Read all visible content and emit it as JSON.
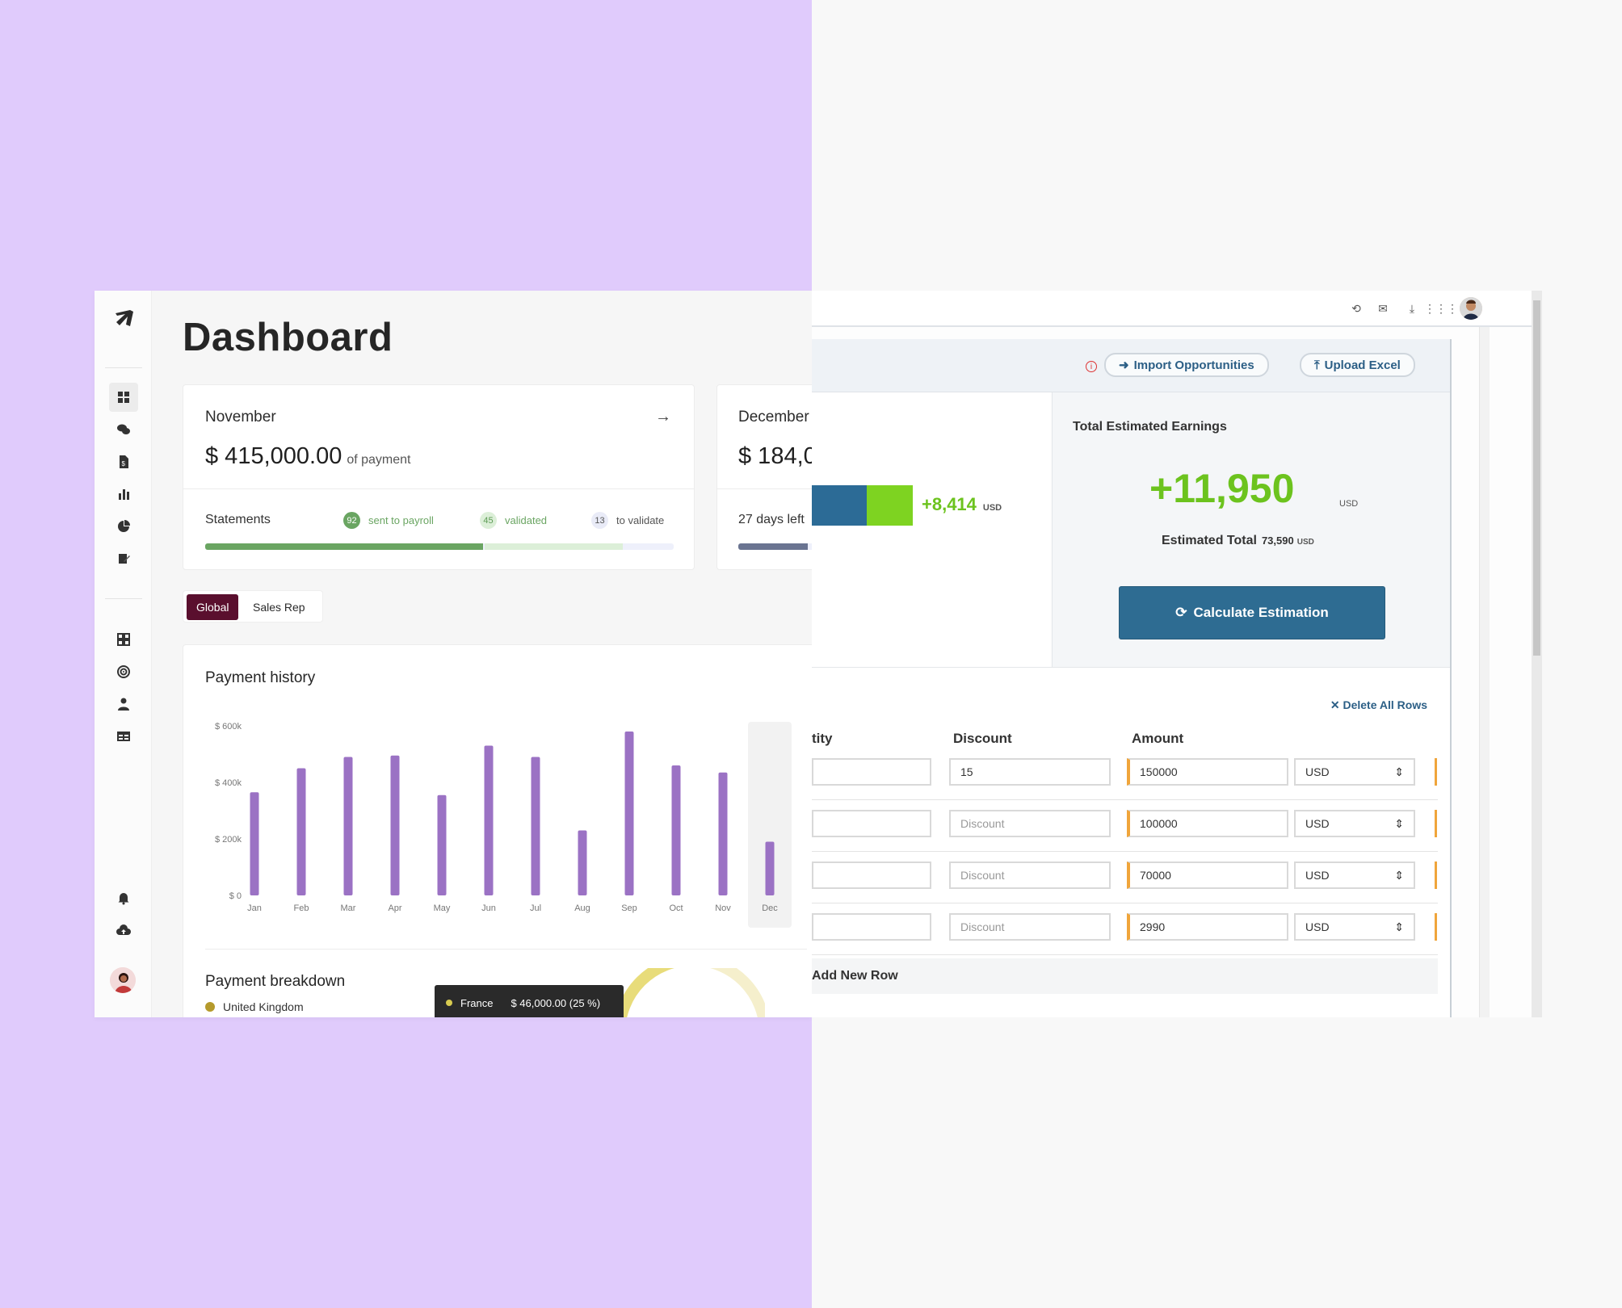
{
  "dashboard": {
    "title": "Dashboard",
    "cards": [
      {
        "month": "November",
        "amount": "$ 415,000.00",
        "amount_suffix": "of payment",
        "stat_label": "Statements",
        "badges": [
          {
            "count": "92",
            "label": "sent to payroll",
            "color": "#6aa562"
          },
          {
            "count": "45",
            "label": "validated",
            "color": "#8fc38a"
          },
          {
            "count": "13",
            "label": "to validate",
            "color": "#7a7d99"
          }
        ],
        "progress": {
          "sent": 0.593,
          "validated": 0.295,
          "to_validate": 0.104
        }
      },
      {
        "month": "December",
        "amount": "$ 184,0",
        "stat_label": "27 days left"
      }
    ],
    "tabs": [
      "Global",
      "Sales Rep"
    ],
    "payment_history_title": "Payment history",
    "payment_breakdown_title": "Payment breakdown",
    "breakdown_legend_first": "United Kingdom",
    "tooltip": {
      "country": "France",
      "value": "$ 46,000.00 (25 %)"
    }
  },
  "chart_data": {
    "type": "bar",
    "categories": [
      "Jan",
      "Feb",
      "Mar",
      "Apr",
      "May",
      "Jun",
      "Jul",
      "Aug",
      "Sep",
      "Oct",
      "Nov",
      "Dec"
    ],
    "values": [
      365000,
      450000,
      490000,
      495000,
      355000,
      530000,
      490000,
      230000,
      580000,
      460000,
      435000,
      190000
    ],
    "y_ticks": [
      "$ 0",
      "$ 200k",
      "$ 400k",
      "$ 600k"
    ],
    "ylim": [
      0,
      600000
    ],
    "highlighted": "Dec",
    "color": "#9b72c4"
  },
  "estimator": {
    "import_label": "Import Opportunities",
    "upload_label": "Upload Excel",
    "delta": "+8,414",
    "delta_unit": "USD",
    "total_title": "Total Estimated Earnings",
    "big_value": "+11,950",
    "big_unit": "USD",
    "est_total_label": "Estimated Total",
    "est_total_value": "73,590",
    "est_total_unit": "USD",
    "calc_label": "Calculate Estimation",
    "delete_all": "Delete All Rows",
    "columns": [
      "tity",
      "Discount",
      "Amount"
    ],
    "rows": [
      {
        "discount": "15",
        "amount": "150000",
        "currency": "USD"
      },
      {
        "discount": "",
        "amount": "100000",
        "currency": "USD"
      },
      {
        "discount": "",
        "amount": "70000",
        "currency": "USD"
      },
      {
        "discount": "",
        "amount": "2990",
        "currency": "USD"
      }
    ],
    "discount_placeholder": "Discount",
    "add_row": "Add New Row"
  },
  "icons": {
    "top_bar": [
      "history-icon",
      "mail-icon",
      "download-icon",
      "apps-grid-icon"
    ],
    "sidebar": [
      "dashboard-icon",
      "chat-icon",
      "document-icon",
      "bar-chart-icon",
      "pie-chart-icon",
      "edit-document-icon",
      "widgets-icon",
      "target-icon",
      "user-icon",
      "table-icon",
      "bell-icon",
      "upload-cloud-icon"
    ]
  }
}
